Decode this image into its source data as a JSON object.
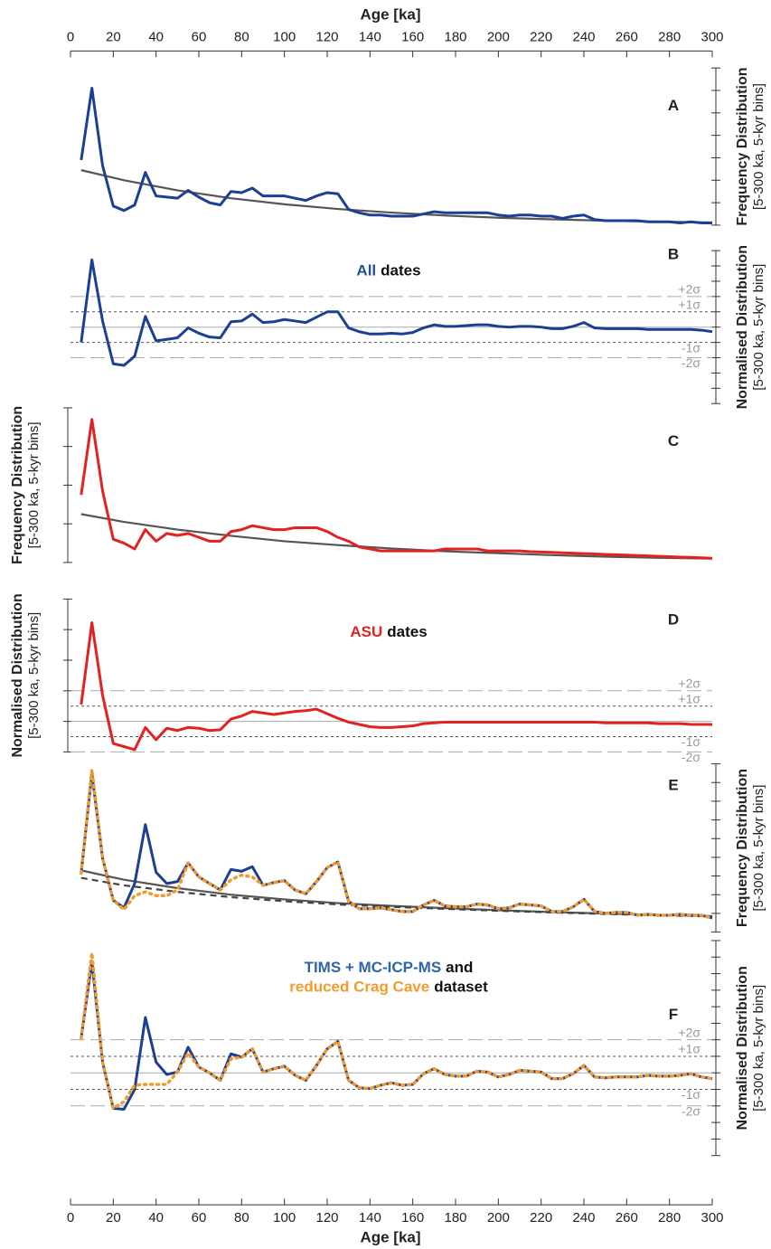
{
  "chart_data": {
    "type": "line",
    "xlabel_top": "Age [ka]",
    "xlabel": "Age [ka]",
    "xlim": [
      0,
      300
    ],
    "xticks": [
      0,
      20,
      40,
      60,
      80,
      100,
      120,
      140,
      160,
      180,
      200,
      220,
      240,
      260,
      280,
      300
    ],
    "x": [
      5,
      10,
      15,
      20,
      25,
      30,
      35,
      40,
      45,
      50,
      55,
      60,
      65,
      70,
      75,
      80,
      85,
      90,
      95,
      100,
      105,
      110,
      115,
      120,
      125,
      130,
      135,
      140,
      145,
      150,
      155,
      160,
      165,
      170,
      175,
      180,
      185,
      190,
      195,
      200,
      205,
      210,
      215,
      220,
      225,
      230,
      235,
      240,
      245,
      250,
      255,
      260,
      265,
      270,
      275,
      280,
      285,
      290,
      295,
      300
    ],
    "panels": [
      {
        "label": "A",
        "axis_side": "right",
        "ylabel": [
          "Frequency Distribution",
          "[5-300 ka, 5-kyr bins]"
        ],
        "ylim": [
          0,
          7
        ],
        "yticks": [
          0,
          1,
          2,
          3,
          4,
          5,
          6,
          7
        ],
        "series": [
          {
            "color": "#555555",
            "dash": "solid",
            "x": [
              5,
              25,
              50,
              75,
              100,
              125,
              150,
              175,
              200,
              225,
              250,
              275,
              300
            ],
            "values": [
              2.45,
              2.0,
              1.55,
              1.2,
              0.93,
              0.72,
              0.56,
              0.43,
              0.33,
              0.26,
              0.2,
              0.155,
              0.12
            ]
          },
          {
            "color": "#1c3f94",
            "dash": "solid",
            "values": [
              2.9,
              6.1,
              2.65,
              0.85,
              0.65,
              0.9,
              2.35,
              1.3,
              1.25,
              1.2,
              1.55,
              1.25,
              1.0,
              0.9,
              1.5,
              1.45,
              1.65,
              1.3,
              1.3,
              1.3,
              1.2,
              1.1,
              1.3,
              1.45,
              1.4,
              0.7,
              0.55,
              0.45,
              0.45,
              0.4,
              0.4,
              0.4,
              0.5,
              0.6,
              0.55,
              0.55,
              0.55,
              0.55,
              0.55,
              0.45,
              0.4,
              0.45,
              0.45,
              0.4,
              0.4,
              0.3,
              0.4,
              0.45,
              0.25,
              0.2,
              0.2,
              0.2,
              0.2,
              0.15,
              0.15,
              0.15,
              0.1,
              0.15,
              0.1,
              0.1
            ]
          }
        ]
      },
      {
        "label": "B",
        "axis_side": "right",
        "ylabel": [
          "Normalised Distribution",
          "[5-300 ka, 5-kyr bins]"
        ],
        "title": [
          [
            {
              "text": "All",
              "color": "#1c4fa0"
            },
            {
              "text": "dates"
            }
          ]
        ],
        "ylim": [
          -5,
          5
        ],
        "yticks": [
          -5,
          -4,
          -3,
          -2,
          -1,
          0,
          1,
          2,
          3,
          4,
          5
        ],
        "sigma_lines": [
          {
            "value": 2,
            "label": "+2σ"
          },
          {
            "value": 1,
            "label": "+1σ"
          },
          0,
          {
            "value": -1,
            "label": "-1σ"
          },
          {
            "value": -2,
            "label": "-2σ"
          }
        ],
        "series": [
          {
            "color": "#1c3f94",
            "dash": "solid",
            "values": [
              -1.0,
              4.4,
              0.4,
              -2.4,
              -2.5,
              -1.9,
              0.7,
              -0.9,
              -0.8,
              -0.7,
              -0.05,
              -0.4,
              -0.65,
              -0.7,
              0.35,
              0.4,
              0.85,
              0.3,
              0.35,
              0.5,
              0.4,
              0.3,
              0.65,
              1.0,
              1.0,
              -0.05,
              -0.3,
              -0.45,
              -0.45,
              -0.4,
              -0.45,
              -0.35,
              -0.05,
              0.15,
              0.05,
              0.05,
              0.1,
              0.15,
              0.15,
              0.05,
              0,
              0.05,
              0.05,
              0,
              -0.1,
              -0.1,
              0.05,
              0.3,
              -0.05,
              -0.1,
              -0.1,
              -0.1,
              -0.1,
              -0.15,
              -0.15,
              -0.15,
              -0.15,
              -0.15,
              -0.2,
              -0.3
            ]
          }
        ]
      },
      {
        "label": "C",
        "axis_side": "left",
        "ylabel": [
          "Frequency Distribution",
          "[5-300 ka, 5-kyr bins]"
        ],
        "ylim": [
          0,
          4
        ],
        "yticks": [
          0,
          1,
          2,
          3,
          4
        ],
        "series": [
          {
            "color": "#555555",
            "dash": "solid",
            "x": [
              5,
              25,
              50,
              75,
              100,
              125,
              150,
              175,
              200,
              225,
              250,
              275,
              300
            ],
            "values": [
              1.25,
              1.05,
              0.85,
              0.69,
              0.55,
              0.45,
              0.36,
              0.29,
              0.24,
              0.19,
              0.15,
              0.12,
              0.1
            ]
          },
          {
            "color": "#e02222",
            "dash": "solid",
            "values": [
              1.75,
              3.7,
              1.85,
              0.6,
              0.5,
              0.35,
              0.85,
              0.55,
              0.75,
              0.7,
              0.75,
              0.65,
              0.55,
              0.55,
              0.8,
              0.85,
              0.95,
              0.9,
              0.85,
              0.85,
              0.9,
              0.9,
              0.9,
              0.8,
              0.65,
              0.55,
              0.4,
              0.35,
              0.3,
              0.3,
              0.3,
              0.3,
              0.3,
              0.3,
              0.35,
              0.35,
              0.35,
              0.35,
              0.3,
              0.3,
              0.3,
              0.3,
              0.28,
              0.27,
              0.26,
              0.25,
              0.24,
              0.23,
              0.22,
              0.21,
              0.2,
              0.19,
              0.18,
              0.17,
              0.16,
              0.15,
              0.14,
              0.13,
              0.12,
              0.11
            ]
          }
        ]
      },
      {
        "label": "D",
        "axis_side": "left",
        "ylabel": [
          "Normalised Distribution",
          "[5-300 ka, 5-kyr bins]"
        ],
        "title": [
          [
            {
              "text": "ASU",
              "color": "#e02222"
            },
            {
              "text": "dates"
            }
          ]
        ],
        "ylim": [
          -2,
          8
        ],
        "yticks": [
          -2,
          0,
          2,
          4,
          6,
          8
        ],
        "sigma_lines": [
          {
            "value": 2,
            "label": "+2σ"
          },
          {
            "value": 1,
            "label": "+1σ"
          },
          0,
          {
            "value": -1,
            "label": "-1σ"
          },
          {
            "value": -2,
            "label": "-2σ"
          }
        ],
        "series": [
          {
            "color": "#e02222",
            "dash": "solid",
            "values": [
              1.1,
              6.45,
              1.7,
              -1.45,
              -1.65,
              -1.85,
              -0.4,
              -1.2,
              -0.45,
              -0.6,
              -0.4,
              -0.45,
              -0.6,
              -0.55,
              0.15,
              0.35,
              0.65,
              0.55,
              0.45,
              0.55,
              0.65,
              0.7,
              0.8,
              0.5,
              0.2,
              -0.05,
              -0.2,
              -0.35,
              -0.4,
              -0.4,
              -0.35,
              -0.3,
              -0.15,
              -0.1,
              -0.05,
              -0.05,
              -0.05,
              -0.05,
              -0.05,
              -0.05,
              -0.05,
              -0.05,
              -0.05,
              -0.05,
              -0.05,
              -0.05,
              -0.05,
              -0.05,
              -0.05,
              -0.1,
              -0.1,
              -0.1,
              -0.1,
              -0.1,
              -0.15,
              -0.15,
              -0.15,
              -0.2,
              -0.2,
              -0.2
            ]
          }
        ]
      },
      {
        "label": "E",
        "axis_side": "right",
        "ylabel": [
          "Frequency Distribution",
          "[5-300 ka, 5-kyr bins]"
        ],
        "ylim": [
          0,
          9
        ],
        "yticks": [
          0,
          1,
          2,
          3,
          4,
          5,
          6,
          7,
          8,
          9
        ],
        "series": [
          {
            "color": "#555555",
            "dash": "solid",
            "x": [
              5,
              25,
              50,
              75,
              100,
              125,
              150,
              175,
              200,
              225,
              250,
              275,
              300
            ],
            "values": [
              3.3,
              2.8,
              2.35,
              2.0,
              1.75,
              1.55,
              1.4,
              1.28,
              1.17,
              1.07,
              0.99,
              0.92,
              0.85
            ]
          },
          {
            "color": "#444444",
            "dash": "dashed",
            "x": [
              5,
              25,
              50,
              75,
              100,
              125,
              150,
              175,
              200,
              225,
              250,
              275,
              300
            ],
            "values": [
              2.9,
              2.5,
              2.15,
              1.87,
              1.65,
              1.48,
              1.35,
              1.24,
              1.14,
              1.05,
              0.97,
              0.9,
              0.84
            ]
          },
          {
            "color": "#1c3f94",
            "dash": "solid",
            "values": [
              3.15,
              8.5,
              3.95,
              1.7,
              1.3,
              2.6,
              5.75,
              3.2,
              2.6,
              2.7,
              3.7,
              2.95,
              2.6,
              2.25,
              3.35,
              3.25,
              3.5,
              2.5,
              2.65,
              2.75,
              2.25,
              2.05,
              2.7,
              3.45,
              3.75,
              1.65,
              1.25,
              1.25,
              1.3,
              1.2,
              1.1,
              1.1,
              1.45,
              1.7,
              1.4,
              1.35,
              1.35,
              1.5,
              1.45,
              1.25,
              1.3,
              1.5,
              1.45,
              1.4,
              1.1,
              1.1,
              1.35,
              1.75,
              1.1,
              1.0,
              1.05,
              1.05,
              0.9,
              0.95,
              0.9,
              0.9,
              0.95,
              0.9,
              0.9,
              0.75
            ]
          },
          {
            "color": "#f39a2e",
            "dash": "dotted",
            "values": [
              3.15,
              8.7,
              3.95,
              1.7,
              1.2,
              1.95,
              2.15,
              1.95,
              1.95,
              2.25,
              3.7,
              2.95,
              2.6,
              2.25,
              2.8,
              3.05,
              2.95,
              2.5,
              2.65,
              2.75,
              2.25,
              2.05,
              2.7,
              3.45,
              3.75,
              1.65,
              1.25,
              1.25,
              1.3,
              1.2,
              1.1,
              1.1,
              1.45,
              1.7,
              1.4,
              1.35,
              1.35,
              1.5,
              1.45,
              1.25,
              1.3,
              1.5,
              1.45,
              1.4,
              1.1,
              1.1,
              1.35,
              1.75,
              1.1,
              1.0,
              1.05,
              1.05,
              0.9,
              0.95,
              0.9,
              0.9,
              0.95,
              0.9,
              0.9,
              0.75
            ]
          }
        ]
      },
      {
        "label": "F",
        "axis_side": "right",
        "ylabel": [
          "Normalised Distribution",
          "[5-300 ka, 5-kyr bins]"
        ],
        "title": [
          [
            {
              "text": "TIMS + MC-ICP-MS",
              "color": "#2e64a8"
            },
            {
              "text": "and"
            }
          ],
          [
            {
              "text": "reduced Crag Cave",
              "color": "#f39a2e"
            },
            {
              "text": "dataset"
            }
          ]
        ],
        "ylim": [
          -5,
          8
        ],
        "yticks": [
          -5,
          -4,
          -3,
          -2,
          -1,
          0,
          1,
          2,
          3,
          4,
          5,
          6,
          7,
          8
        ],
        "sigma_lines": [
          {
            "value": 2,
            "label": "+2σ"
          },
          {
            "value": 1,
            "label": "+1σ"
          },
          0,
          {
            "value": -1,
            "label": "-1σ"
          },
          {
            "value": -2,
            "label": "-2σ"
          }
        ],
        "series": [
          {
            "color": "#1c3f94",
            "dash": "solid",
            "values": [
              2.1,
              6.75,
              0.65,
              -2.15,
              -2.2,
              -1.0,
              3.35,
              0.65,
              -0.1,
              0.05,
              1.55,
              0.35,
              0,
              -0.45,
              1.15,
              0.95,
              1.45,
              0.05,
              0.25,
              0.4,
              -0.15,
              -0.45,
              0.45,
              1.45,
              1.9,
              -0.45,
              -0.9,
              -0.95,
              -0.75,
              -0.6,
              -0.75,
              -0.7,
              -0.05,
              0.25,
              -0.1,
              -0.2,
              -0.2,
              0.1,
              0.05,
              -0.25,
              -0.1,
              0.15,
              0.1,
              0.05,
              -0.35,
              -0.35,
              -0.05,
              0.45,
              -0.25,
              -0.3,
              -0.25,
              -0.25,
              -0.25,
              -0.15,
              -0.2,
              -0.2,
              -0.15,
              -0.05,
              -0.25,
              -0.35
            ]
          },
          {
            "color": "#f39a2e",
            "dash": "dotted",
            "values": [
              2.1,
              7.25,
              0.65,
              -2.15,
              -1.75,
              -0.75,
              -0.7,
              -0.7,
              -0.7,
              0.05,
              1.2,
              0.35,
              0,
              -0.45,
              0.85,
              0.95,
              1.45,
              0.05,
              0.25,
              0.4,
              -0.15,
              -0.45,
              0.45,
              1.45,
              1.9,
              -0.45,
              -0.9,
              -0.95,
              -0.75,
              -0.6,
              -0.75,
              -0.7,
              -0.05,
              0.25,
              -0.1,
              -0.2,
              -0.2,
              0.1,
              0.05,
              -0.25,
              -0.1,
              0.15,
              0.1,
              0.05,
              -0.35,
              -0.35,
              -0.05,
              0.45,
              -0.25,
              -0.3,
              -0.25,
              -0.25,
              -0.25,
              -0.15,
              -0.2,
              -0.2,
              -0.15,
              -0.05,
              -0.25,
              -0.35
            ]
          }
        ]
      }
    ]
  }
}
